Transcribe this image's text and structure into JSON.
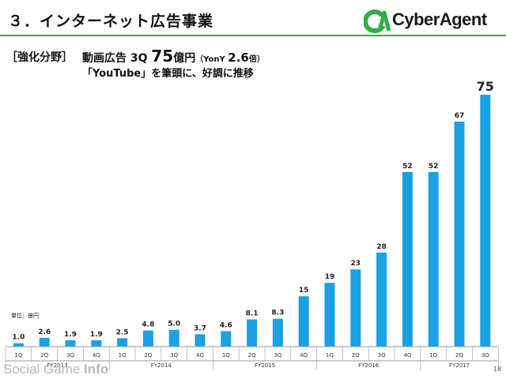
{
  "slide": {
    "title": "３．インターネット広告事業",
    "category_tag": "［強化分野］",
    "headline_prefix": "動画広告 3Q ",
    "headline_value": "75",
    "headline_unit": "億円",
    "headline_yoy_open": "（YonY ",
    "headline_yoy_value": "2.6",
    "headline_yoy_unit": "倍",
    "headline_yoy_close": "）",
    "subline": "「YouTube」を筆頭に、好調に推移",
    "unit_label": "単位：億円",
    "page_number": "18"
  },
  "logo": {
    "text": "CyberAgent",
    "mark_color": "#2fae49"
  },
  "watermark": {
    "part1": "Social Game ",
    "part2": "Info"
  },
  "colors": {
    "bar": "#1ba1e2",
    "accent": "#2fae49",
    "axis": "#999999"
  },
  "chart_data": {
    "type": "bar",
    "categories": [
      "1Q",
      "2Q",
      "3Q",
      "4Q",
      "1Q",
      "2Q",
      "3Q",
      "4Q",
      "1Q",
      "2Q",
      "3Q",
      "4Q",
      "1Q",
      "2Q",
      "3Q",
      "4Q",
      "1Q",
      "2Q",
      "3Q"
    ],
    "values": [
      1.0,
      2.6,
      1.9,
      1.9,
      2.5,
      4.8,
      5.0,
      3.7,
      4.6,
      8.1,
      8.3,
      15,
      19,
      23,
      28,
      52,
      52,
      67,
      75
    ],
    "value_labels": [
      "1.0",
      "2.6",
      "1.9",
      "1.9",
      "2.5",
      "4.8",
      "5.0",
      "3.7",
      "4.6",
      "8.1",
      "8.3",
      "15",
      "19",
      "23",
      "28",
      "52",
      "52",
      "67",
      "75"
    ],
    "groups": [
      {
        "label": "FY2013",
        "start": 0,
        "end": 3
      },
      {
        "label": "FY2014",
        "start": 4,
        "end": 7
      },
      {
        "label": "FY2015",
        "start": 8,
        "end": 11
      },
      {
        "label": "FY2016",
        "start": 12,
        "end": 15
      },
      {
        "label": "FY2017",
        "start": 16,
        "end": 18
      }
    ],
    "ylim": [
      0,
      75
    ],
    "grid": false,
    "legend": "none"
  }
}
